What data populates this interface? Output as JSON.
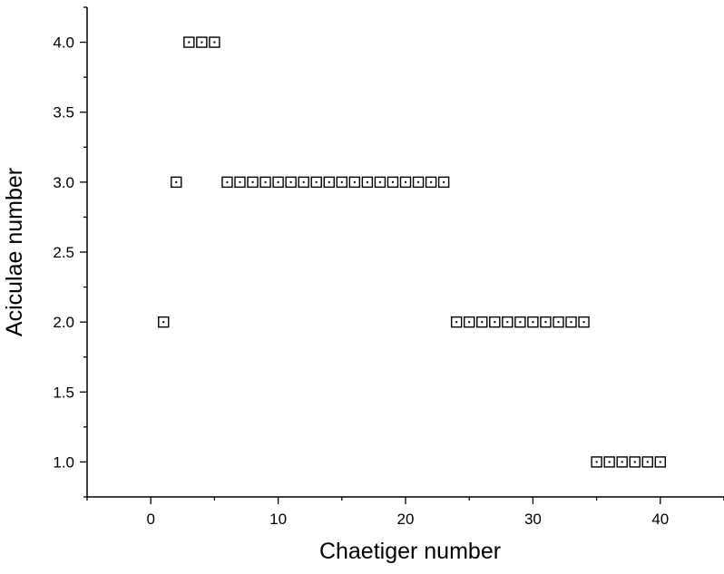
{
  "chart_data": {
    "type": "scatter",
    "title": "",
    "xlabel": "Chaetiger number",
    "ylabel": "Aciculae number",
    "xlim": [
      -5,
      45
    ],
    "ylim": [
      0.75,
      4.25
    ],
    "xticks": [
      0,
      10,
      20,
      30,
      40
    ],
    "xtick_labels": [
      "0",
      "10",
      "20",
      "30",
      "40"
    ],
    "yticks": [
      1.0,
      1.5,
      2.0,
      2.5,
      3.0,
      3.5,
      4.0
    ],
    "ytick_labels": [
      "1.0",
      "1.5",
      "2.0",
      "2.5",
      "3.0",
      "3.5",
      "4.0"
    ],
    "grid": false,
    "marker": "square-with-center-dot",
    "marker_color": "#000000",
    "series": [
      {
        "x": [
          1,
          2,
          3,
          4,
          5,
          6,
          7,
          8,
          9,
          10,
          11,
          12,
          13,
          14,
          15,
          16,
          17,
          18,
          19,
          20,
          21,
          22,
          23,
          24,
          25,
          26,
          27,
          28,
          29,
          30,
          31,
          32,
          33,
          34,
          35,
          36,
          37,
          38,
          39,
          40
        ],
        "y": [
          2,
          3,
          4,
          4,
          4,
          3,
          3,
          3,
          3,
          3,
          3,
          3,
          3,
          3,
          3,
          3,
          3,
          3,
          3,
          3,
          3,
          3,
          3,
          2,
          2,
          2,
          2,
          2,
          2,
          2,
          2,
          2,
          2,
          2,
          1,
          1,
          1,
          1,
          1,
          1
        ]
      }
    ]
  }
}
